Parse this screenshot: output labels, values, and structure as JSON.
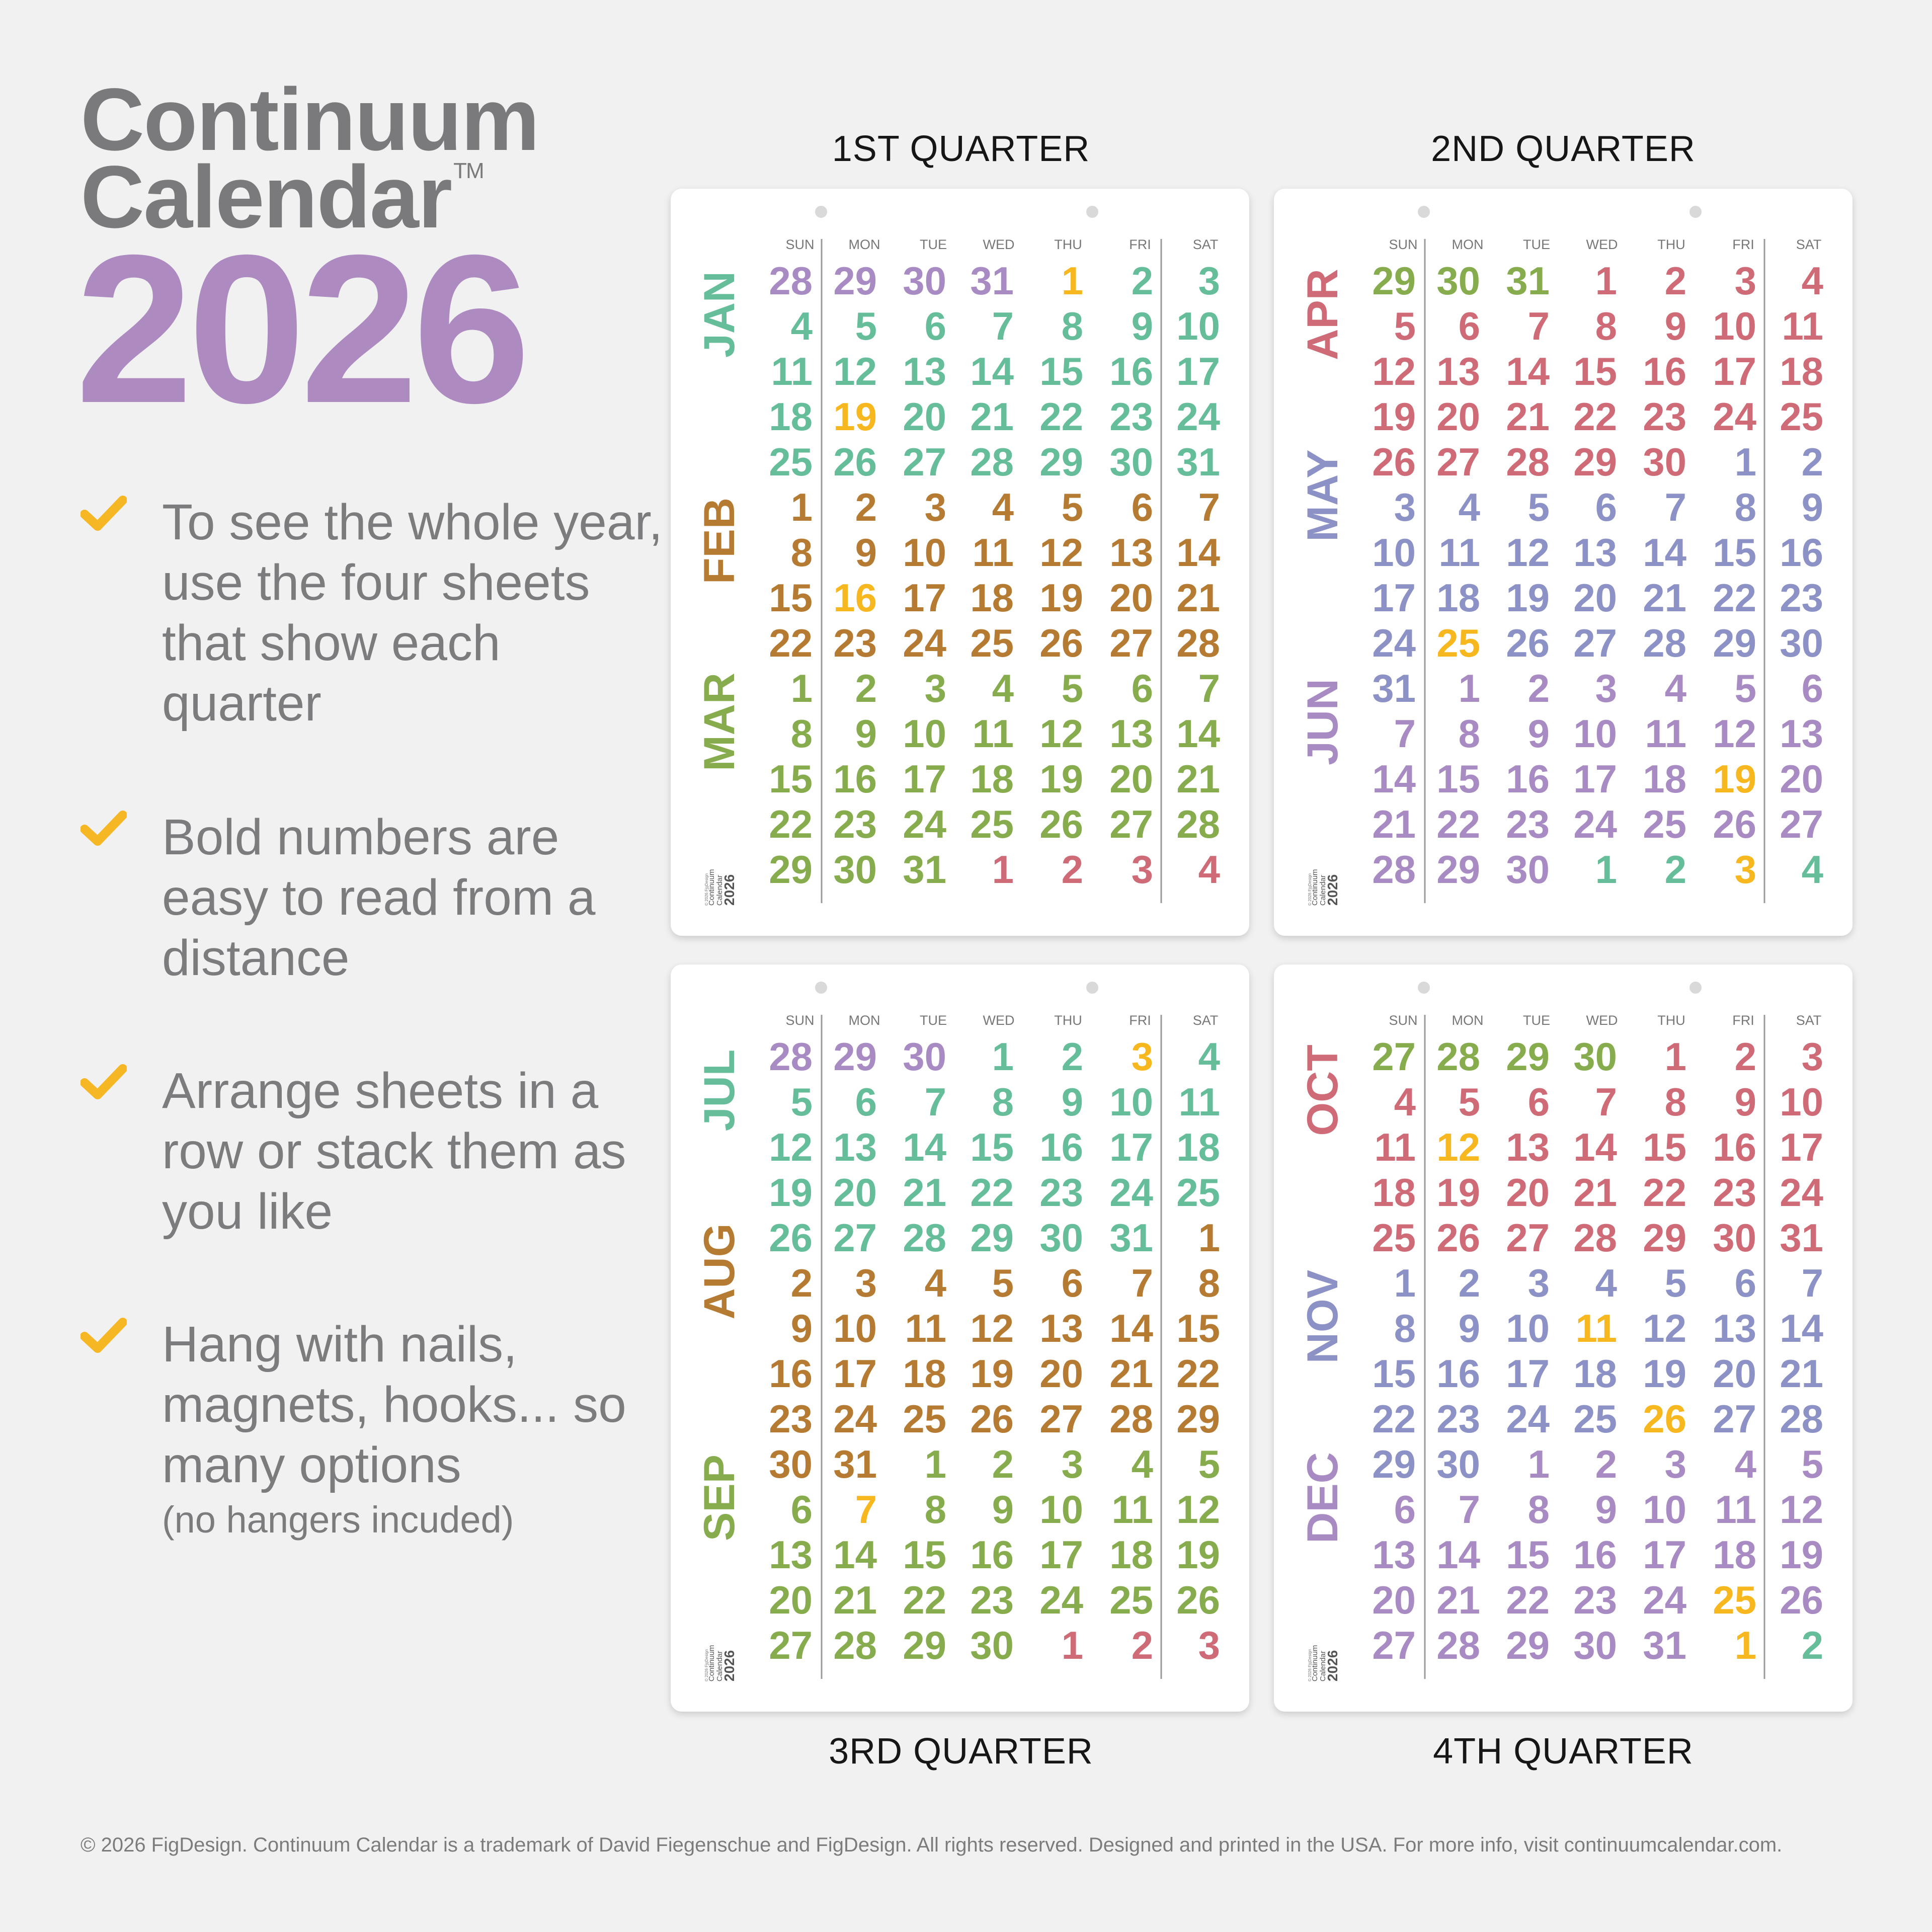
{
  "brand": {
    "line1": "Continuum",
    "line2": "Calendar",
    "tm": "TM",
    "year": "2026"
  },
  "features": [
    {
      "text": "To see the whole year, use the four sheets that show each quarter"
    },
    {
      "text": "Bold numbers are easy to read from a distance"
    },
    {
      "text": "Arrange sheets in a row or stack them as you like"
    },
    {
      "text": "Hang with nails, magnets, hooks... so many options",
      "note": "(no hangers incuded)"
    }
  ],
  "quarters": [
    {
      "title": "1ST QUARTER"
    },
    {
      "title": "2ND QUARTER"
    },
    {
      "title": "3RD QUARTER"
    },
    {
      "title": "4TH QUARTER"
    }
  ],
  "weekdays": [
    "SUN",
    "MON",
    "TUE",
    "WED",
    "THU",
    "FRI",
    "SAT"
  ],
  "sheet_logo": {
    "line1": "Continuum",
    "line2": "Calendar",
    "year": "2026",
    "copy": "© 2026 FigDesign"
  },
  "calendar": {
    "year": 2026,
    "first_weekday_jan1": 4,
    "month_names": [
      "JAN",
      "FEB",
      "MAR",
      "APR",
      "MAY",
      "JUN",
      "JUL",
      "AUG",
      "SEP",
      "OCT",
      "NOV",
      "DEC"
    ],
    "quarter_starts": [
      "2025-12-28",
      "2026-03-29",
      "2026-06-28",
      "2026-09-27"
    ],
    "month_colors": [
      "#65bd9a",
      "#b67b32",
      "#86ac4e",
      "#cf6b77",
      "#8c91c6",
      "#a78bc2",
      "#65bd9a",
      "#b67b32",
      "#86ac4e",
      "#cf6b77",
      "#8c91c6",
      "#a78bc2"
    ],
    "holiday_color": "#f7b71f",
    "holidays": [
      "2026-01-01",
      "2026-01-19",
      "2026-02-16",
      "2026-05-25",
      "2026-06-19",
      "2026-07-03",
      "2026-09-07",
      "2026-10-12",
      "2026-11-11",
      "2026-11-26",
      "2026-12-25",
      "2027-01-01"
    ]
  },
  "footer": {
    "text": "© 2026 FigDesign. Continuum Calendar is a trademark of David Fiegenschue and FigDesign. All rights reserved. Designed and printed in the USA. For more info, visit continuumcalendar.com."
  }
}
